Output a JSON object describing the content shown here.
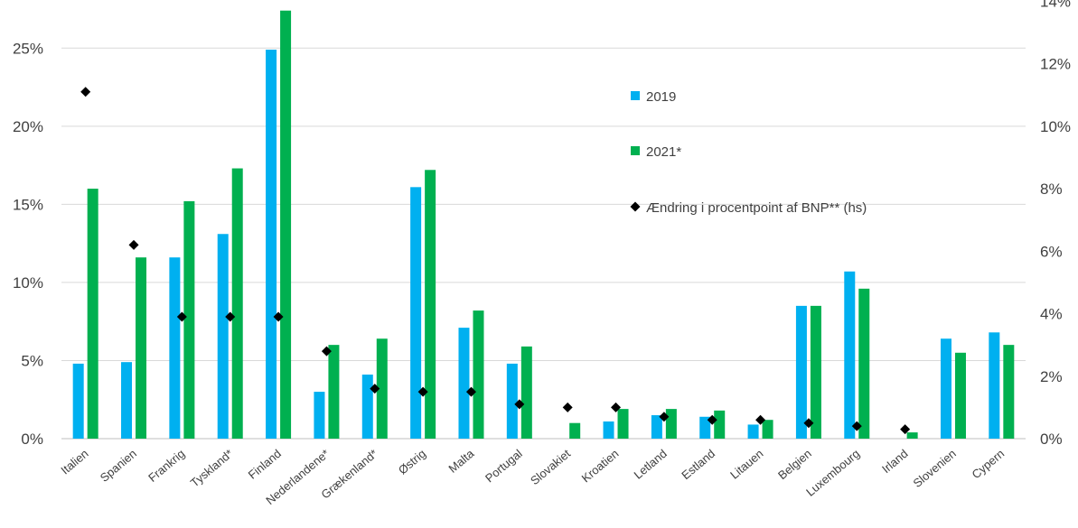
{
  "chart_data": {
    "type": "bar",
    "categories": [
      "Italien",
      "Spanien",
      "Frankrig",
      "Tyskland*",
      "Finland",
      "Nederlandene*",
      "Grækenland*",
      "Østrig",
      "Malta",
      "Portugal",
      "Slovakiet",
      "Kroatien",
      "Letland",
      "Estland",
      "Litauen",
      "Belgien",
      "Luxembourg",
      "Irland",
      "Slovenien",
      "Cypern"
    ],
    "series": [
      {
        "name": "2019",
        "axis": "left",
        "kind": "bar",
        "color": "#00B0F0",
        "values": [
          4.8,
          4.9,
          11.6,
          13.1,
          24.9,
          3.0,
          4.1,
          16.1,
          7.1,
          4.8,
          0.0,
          1.1,
          1.5,
          1.4,
          0.9,
          8.5,
          10.7,
          0.0,
          6.4,
          6.8
        ]
      },
      {
        "name": "2021*",
        "axis": "left",
        "kind": "bar",
        "color": "#00B050",
        "values": [
          16.0,
          11.6,
          15.2,
          17.3,
          27.4,
          6.0,
          6.4,
          17.2,
          8.2,
          5.9,
          1.0,
          1.9,
          1.9,
          1.8,
          1.2,
          8.5,
          9.6,
          0.4,
          5.5,
          6.0
        ]
      },
      {
        "name": "Ændring i procentpoint af BNP** (hs)",
        "axis": "right",
        "kind": "scatter",
        "color": "#000000",
        "values": [
          11.1,
          6.2,
          3.9,
          3.9,
          3.9,
          2.8,
          1.6,
          1.5,
          1.5,
          1.1,
          1.0,
          1.0,
          0.7,
          0.6,
          0.6,
          0.5,
          0.4,
          0.3,
          null,
          null
        ]
      }
    ],
    "y_left": {
      "min": 0,
      "max": 27.5,
      "ticks": [
        0,
        5,
        10,
        15,
        20,
        25
      ],
      "tick_labels": [
        "0%",
        "5%",
        "10%",
        "15%",
        "20%",
        "25%"
      ]
    },
    "y_right": {
      "min": 0,
      "max": 13.75,
      "ticks": [
        0,
        2,
        4,
        6,
        8,
        10,
        12,
        14
      ],
      "tick_labels": [
        "0%",
        "2%",
        "4%",
        "6%",
        "8%",
        "10%",
        "12%",
        "14%"
      ]
    },
    "grid": true,
    "legend": {
      "placement": "center"
    }
  }
}
